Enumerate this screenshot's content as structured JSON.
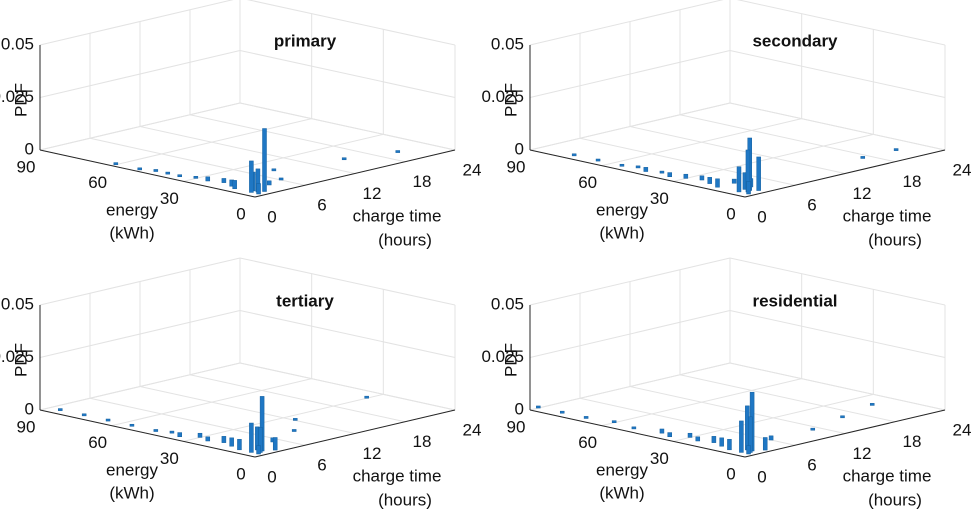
{
  "chart_data": [
    {
      "type": "bar3d",
      "title": "primary",
      "zlabel": "PDF",
      "xlabel": [
        "energy",
        "(kWh)"
      ],
      "ylabel": [
        "charge time",
        "(hours)"
      ],
      "xlim": [
        0,
        90
      ],
      "xticks": [
        0,
        30,
        60,
        90
      ],
      "ylim": [
        0,
        24
      ],
      "yticks": [
        0,
        6,
        12,
        18,
        24
      ],
      "zlim": [
        0,
        0.05
      ],
      "zticks": [
        0,
        0.025,
        0.05
      ],
      "grid": true,
      "color": "#1f77c4",
      "x": [
        60,
        50,
        45,
        40,
        35,
        30,
        25,
        20,
        15,
        12,
        10,
        20,
        15,
        10,
        8,
        8,
        6,
        5,
        4,
        3,
        2
      ],
      "y": [
        0.5,
        0.5,
        1,
        1,
        1,
        1.5,
        1.5,
        2,
        1.5,
        1,
        20,
        8,
        15,
        6,
        4,
        2,
        1.5,
        1,
        1.5,
        2,
        1
      ],
      "values": [
        0.001,
        0.001,
        0.001,
        0.001,
        0.001,
        0.001,
        0.002,
        0.002,
        0.003,
        0.004,
        0.001,
        0.001,
        0.001,
        0.001,
        0.002,
        0.006,
        0.009,
        0.015,
        0.011,
        0.03,
        0.005
      ]
    },
    {
      "type": "bar3d",
      "title": "secondary",
      "zlabel": "PDF",
      "xlabel": [
        "energy",
        "(kWh)"
      ],
      "ylabel": [
        "charge time",
        "(hours)"
      ],
      "xlim": [
        0,
        90
      ],
      "xticks": [
        0,
        30,
        60,
        90
      ],
      "ylim": [
        0,
        24
      ],
      "yticks": [
        0,
        6,
        12,
        18,
        24
      ],
      "zlim": [
        0,
        0.05
      ],
      "zticks": [
        0,
        0.025,
        0.05
      ],
      "grid": true,
      "color": "#1f77c4",
      "x": [
        75,
        65,
        55,
        50,
        45,
        40,
        35,
        30,
        25,
        20,
        15,
        10,
        10,
        20,
        15,
        8,
        7,
        6,
        5,
        4,
        3,
        2
      ],
      "y": [
        1,
        1,
        1,
        1.5,
        1,
        1.5,
        1,
        1.5,
        2,
        1.5,
        1,
        21,
        17,
        6,
        3,
        3,
        2,
        1,
        2,
        1.5,
        2.5,
        1
      ],
      "values": [
        0.001,
        0.001,
        0.001,
        0.001,
        0.002,
        0.001,
        0.002,
        0.002,
        0.002,
        0.003,
        0.004,
        0.001,
        0.001,
        0.001,
        0.002,
        0.004,
        0.008,
        0.012,
        0.025,
        0.02,
        0.016,
        0.006
      ]
    },
    {
      "type": "bar3d",
      "title": "tertiary",
      "zlabel": "PDF",
      "xlabel": [
        "energy",
        "(kWh)"
      ],
      "ylabel": [
        "charge time",
        "(hours)"
      ],
      "xlim": [
        0,
        90
      ],
      "xticks": [
        0,
        30,
        60,
        90
      ],
      "ylim": [
        0,
        24
      ],
      "yticks": [
        0,
        6,
        12,
        18,
        24
      ],
      "zlim": [
        0,
        0.05
      ],
      "zticks": [
        0,
        0.025,
        0.05
      ],
      "grid": true,
      "color": "#1f77c4",
      "x": [
        85,
        75,
        65,
        55,
        45,
        40,
        35,
        30,
        25,
        20,
        15,
        10,
        30,
        25,
        15,
        10,
        8,
        6,
        5,
        4,
        3,
        2,
        2
      ],
      "y": [
        1,
        1,
        1,
        1,
        1,
        1.5,
        1,
        2,
        1.5,
        2,
        1.5,
        1,
        22,
        12,
        9,
        5,
        3,
        2,
        1,
        2,
        1.5,
        3,
        1
      ],
      "values": [
        0.001,
        0.001,
        0.001,
        0.001,
        0.001,
        0.001,
        0.002,
        0.002,
        0.002,
        0.003,
        0.004,
        0.005,
        0.001,
        0.001,
        0.001,
        0.002,
        0.004,
        0.011,
        0.014,
        0.026,
        0.012,
        0.006,
        0.004
      ]
    },
    {
      "type": "bar3d",
      "title": "residential",
      "zlabel": "PDF",
      "xlabel": [
        "energy",
        "(kWh)"
      ],
      "ylabel": [
        "charge time",
        "(hours)"
      ],
      "xlim": [
        0,
        90
      ],
      "xticks": [
        0,
        30,
        60,
        90
      ],
      "ylim": [
        0,
        24
      ],
      "yticks": [
        0,
        6,
        12,
        18,
        24
      ],
      "zlim": [
        0,
        0.05
      ],
      "zticks": [
        0,
        0.025,
        0.05
      ],
      "grid": true,
      "color": "#1f77c4",
      "x": [
        90,
        80,
        70,
        60,
        50,
        40,
        35,
        30,
        25,
        20,
        15,
        10,
        20,
        15,
        10,
        10,
        8,
        6,
        5,
        4,
        3,
        2,
        2
      ],
      "y": [
        1,
        1,
        1,
        1.5,
        1,
        1.5,
        1,
        2,
        1.5,
        2,
        1.5,
        1,
        21,
        16,
        11,
        6,
        3,
        2,
        1,
        2,
        1.5,
        3,
        1
      ],
      "values": [
        0.001,
        0.001,
        0.001,
        0.001,
        0.001,
        0.002,
        0.002,
        0.002,
        0.002,
        0.003,
        0.004,
        0.005,
        0.001,
        0.001,
        0.001,
        0.002,
        0.005,
        0.021,
        0.015,
        0.028,
        0.017,
        0.006,
        0.004
      ]
    }
  ]
}
